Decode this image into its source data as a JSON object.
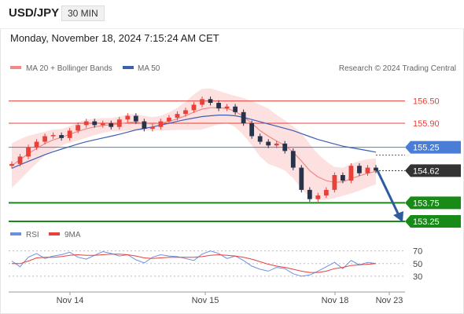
{
  "header": {
    "pair": "USD/JPY",
    "timeframe": "30 MIN",
    "datetime": "Monday, November 18, 2024 7:15:24 AM CET"
  },
  "legend": {
    "ma20_label": "MA 20 + Bollinger Bands",
    "ma50_label": "MA 50",
    "credit": "Research © 2024 Trading Central",
    "rsi_label": "RSI",
    "rsi_ma_label": "9MA"
  },
  "colors": {
    "candle_up": "#e8413a",
    "candle_down": "#27334a",
    "ma20": "#f08a86",
    "band_fill": "#fde0e0",
    "ma50": "#3c5fb0",
    "level_red": "#e8413a",
    "level_blue": "#4a7ed6",
    "level_green": "#178a17",
    "current": "#333333",
    "rsi": "#6d8fe0",
    "rsi_ma": "#e8413a",
    "arrow": "#2d5aa0"
  },
  "chart_data": [
    {
      "type": "candlestick",
      "title": "USD/JPY 30 MIN",
      "x_ticks": [
        "Nov 14",
        "Nov 15",
        "Nov 18",
        "Nov 23"
      ],
      "y_range": [
        153.08,
        157.15
      ],
      "levels": [
        {
          "label": "156.50",
          "value": 156.5,
          "kind": "resistance"
        },
        {
          "label": "155.90",
          "value": 155.9,
          "kind": "resistance"
        },
        {
          "label": "155.25",
          "value": 155.25,
          "kind": "pivot"
        },
        {
          "label": "154.62",
          "value": 154.62,
          "kind": "current"
        },
        {
          "label": "153.75",
          "value": 153.75,
          "kind": "target"
        },
        {
          "label": "153.25",
          "value": 153.25,
          "kind": "target"
        }
      ],
      "series_close": [
        154.8,
        155.0,
        155.25,
        155.4,
        155.55,
        155.58,
        155.5,
        155.7,
        155.85,
        155.95,
        155.85,
        155.9,
        155.8,
        156.0,
        156.1,
        155.95,
        155.75,
        155.8,
        155.95,
        156.05,
        156.15,
        156.25,
        156.4,
        156.55,
        156.45,
        156.3,
        156.35,
        156.2,
        155.9,
        155.55,
        155.4,
        155.3,
        155.35,
        155.15,
        154.7,
        154.1,
        153.85,
        153.95,
        154.1,
        154.5,
        154.35,
        154.75,
        154.55,
        154.7,
        154.62
      ],
      "ma20": [
        154.75,
        154.92,
        155.08,
        155.22,
        155.35,
        155.45,
        155.52,
        155.6,
        155.68,
        155.75,
        155.8,
        155.84,
        155.86,
        155.88,
        155.92,
        155.93,
        155.9,
        155.88,
        155.9,
        155.95,
        156.02,
        156.1,
        156.2,
        156.28,
        156.32,
        156.32,
        156.3,
        156.22,
        156.08,
        155.9,
        155.7,
        155.55,
        155.42,
        155.3,
        155.12,
        154.88,
        154.62,
        154.45,
        154.35,
        154.3,
        154.32,
        154.4,
        154.48,
        154.55,
        154.6
      ],
      "bb_width": [
        0.6,
        0.55,
        0.48,
        0.4,
        0.32,
        0.28,
        0.22,
        0.22,
        0.24,
        0.25,
        0.22,
        0.2,
        0.18,
        0.2,
        0.22,
        0.22,
        0.2,
        0.18,
        0.2,
        0.24,
        0.3,
        0.38,
        0.48,
        0.55,
        0.52,
        0.45,
        0.4,
        0.42,
        0.5,
        0.6,
        0.7,
        0.75,
        0.7,
        0.68,
        0.7,
        0.75,
        0.72,
        0.62,
        0.52,
        0.42,
        0.38,
        0.4,
        0.4,
        0.38,
        0.35
      ],
      "ma50": [
        154.68,
        154.78,
        154.87,
        154.96,
        155.05,
        155.13,
        155.2,
        155.27,
        155.34,
        155.4,
        155.45,
        155.5,
        155.55,
        155.6,
        155.66,
        155.72,
        155.76,
        155.8,
        155.85,
        155.9,
        155.95,
        156.0,
        156.04,
        156.08,
        156.1,
        156.12,
        156.12,
        156.1,
        156.06,
        156.0,
        155.94,
        155.88,
        155.82,
        155.76,
        155.7,
        155.62,
        155.54,
        155.46,
        155.4,
        155.34,
        155.28,
        155.24,
        155.2,
        155.16,
        155.12
      ],
      "projection": {
        "from": 154.62,
        "to": 153.25
      }
    },
    {
      "type": "line",
      "title": "RSI",
      "y_ticks": [
        70,
        50,
        30
      ],
      "y_range": [
        10,
        82
      ],
      "series": [
        {
          "name": "RSI",
          "values": [
            54,
            45,
            60,
            66,
            58,
            62,
            64,
            68,
            60,
            57,
            63,
            69,
            66,
            62,
            64,
            56,
            51,
            60,
            64,
            62,
            61,
            58,
            55,
            65,
            70,
            66,
            58,
            62,
            55,
            46,
            41,
            38,
            44,
            42,
            34,
            30,
            32,
            38,
            45,
            52,
            42,
            55,
            48,
            52,
            50
          ]
        },
        {
          "name": "9MA",
          "values": [
            50,
            50,
            54,
            59,
            60,
            60,
            61,
            63,
            64,
            63,
            63,
            64,
            65,
            65,
            64,
            62,
            59,
            58,
            59,
            60,
            60,
            60,
            60,
            61,
            63,
            64,
            63,
            62,
            60,
            57,
            53,
            49,
            46,
            44,
            41,
            38,
            36,
            36,
            38,
            42,
            44,
            47,
            48,
            49,
            50
          ]
        }
      ]
    }
  ]
}
